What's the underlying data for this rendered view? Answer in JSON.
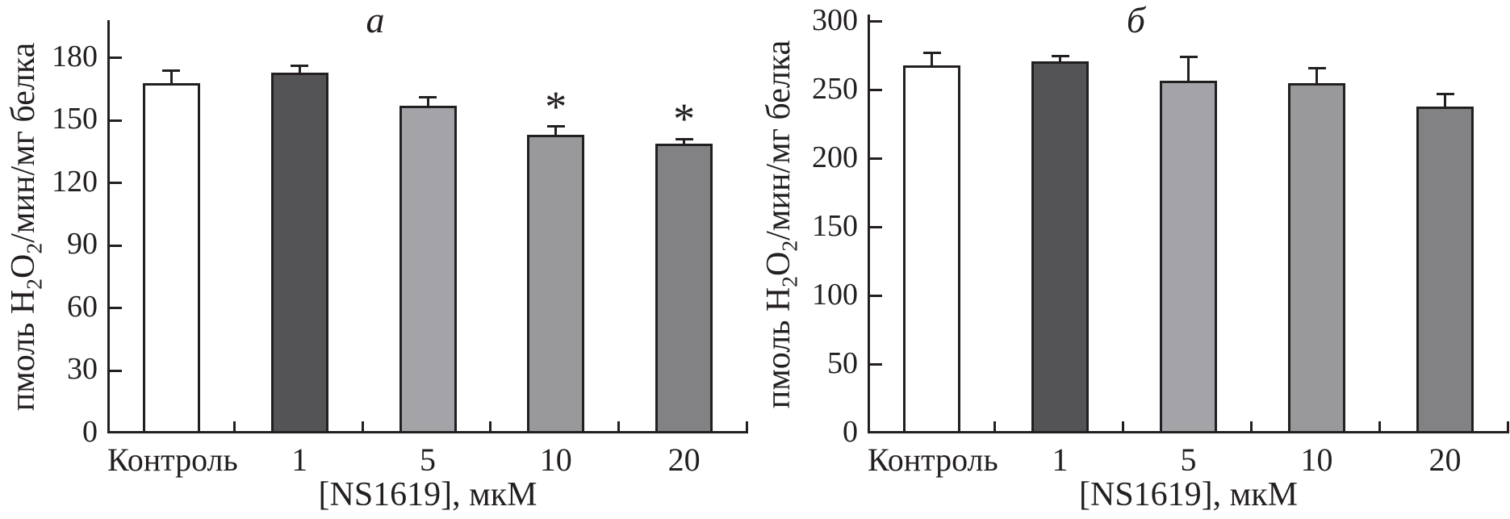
{
  "figure": {
    "background": "#ffffff",
    "ink_color": "#231f20",
    "bar_border_color": "#231f20"
  },
  "ylabel": {
    "pre": "пмоль H",
    "sub1": "2",
    "mid": "O",
    "sub2": "2",
    "post": "/мин/мг белка"
  },
  "chart_data": [
    {
      "type": "bar",
      "panel_label": "a",
      "xlabel": "[NS1619], мкМ",
      "ylabel_text": "пмоль H2O2/мин/мг белка",
      "categories": [
        "Контроль",
        "1",
        "5",
        "10",
        "20"
      ],
      "values": [
        168,
        173,
        157,
        143,
        139
      ],
      "errors": [
        6,
        3,
        4,
        4,
        2
      ],
      "annotations": [
        "",
        "",
        "",
        "*",
        "*"
      ],
      "bar_fill_colors": [
        "#ffffff",
        "#545456",
        "#a4a4a8",
        "#99999b",
        "#828285"
      ],
      "yticks": [
        0,
        30,
        60,
        90,
        120,
        150,
        180
      ],
      "ylim": [
        0,
        198
      ],
      "grid": false,
      "legend_position": "none",
      "error_bars": "upper-only"
    },
    {
      "type": "bar",
      "panel_label": "б",
      "xlabel": "[NS1619], мкМ",
      "ylabel_text": "пмоль H2O2/мин/мг белка",
      "categories": [
        "Контроль",
        "1",
        "5",
        "10",
        "20"
      ],
      "values": [
        268,
        271,
        257,
        255,
        238
      ],
      "errors": [
        9,
        4,
        17,
        11,
        9
      ],
      "annotations": [
        "",
        "",
        "",
        "",
        ""
      ],
      "bar_fill_colors": [
        "#ffffff",
        "#545456",
        "#a4a4a8",
        "#99999b",
        "#828285"
      ],
      "yticks": [
        0,
        50,
        100,
        150,
        200,
        250,
        300
      ],
      "ylim": [
        0,
        305
      ],
      "grid": false,
      "legend_position": "none",
      "error_bars": "upper-only"
    }
  ]
}
